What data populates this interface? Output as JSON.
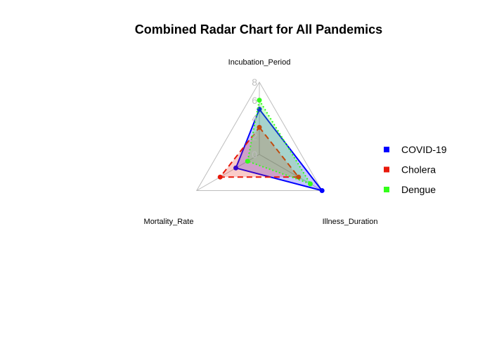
{
  "chart_data": {
    "type": "radar",
    "title": "Combined Radar Chart for All Pandemics",
    "axes": [
      "Incubation_Period",
      "Illness_Duration",
      "Mortality_Rate"
    ],
    "ticks": [
      "0",
      "2",
      "4",
      "6",
      "8"
    ],
    "range": [
      0,
      8
    ],
    "legend_position": "right",
    "series": [
      {
        "name": "COVID-19",
        "values": [
          5,
          8,
          3
        ],
        "color": "#0000ff",
        "line_style": "solid"
      },
      {
        "name": "Cholera",
        "values": [
          3,
          5,
          5
        ],
        "color": "#e8190b",
        "line_style": "dashed"
      },
      {
        "name": "Dengue",
        "values": [
          6,
          6.5,
          1.5
        ],
        "color": "#33ff1a",
        "line_style": "dotted"
      }
    ]
  }
}
